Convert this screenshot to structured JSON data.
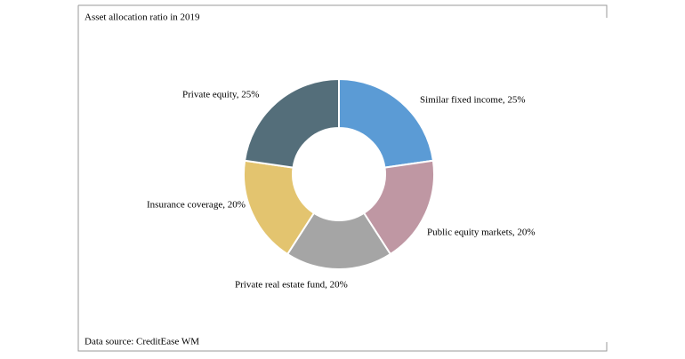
{
  "chart_data": {
    "type": "donut",
    "title": "Asset allocation ratio in 2019",
    "categories": [
      "Similar fixed income, 25%",
      "Public equity markets, 20%",
      "Private real estate fund, 20%",
      "Insurance coverage, 20%",
      "Private equity, 25%"
    ],
    "values": [
      25,
      20,
      20,
      20,
      25
    ],
    "colors": [
      "#5b9bd5",
      "#bf97a3",
      "#a5a5a5",
      "#e3c46f",
      "#546e7a"
    ],
    "source": "Data source: CreditEase WM"
  }
}
